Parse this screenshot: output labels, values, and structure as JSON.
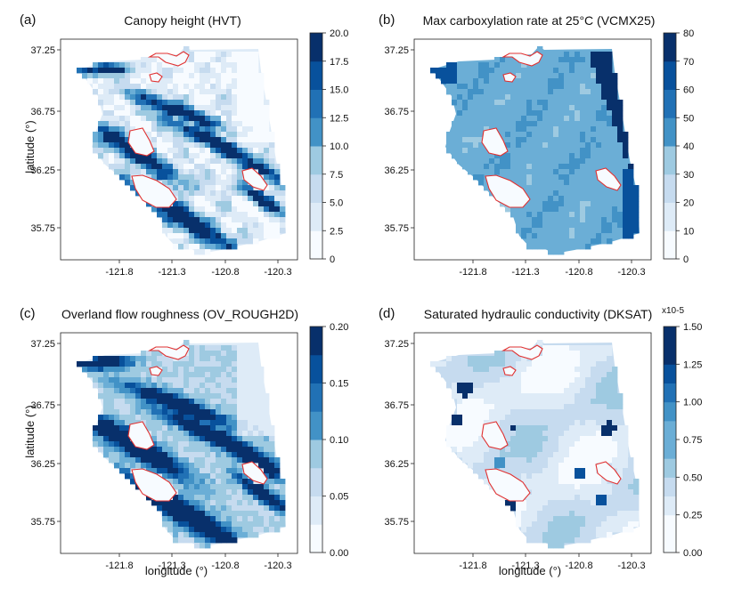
{
  "figure": {
    "shared_ylabel": "latitude (°)",
    "shared_xlabel": "longitude (°)",
    "lat_ticks": [
      "37.25",
      "36.75",
      "36.25",
      "35.75"
    ],
    "lon_ticks": [
      "-121.8",
      "-121.3",
      "-120.8",
      "-120.3"
    ],
    "panels": [
      {
        "letter": "(a)",
        "title": "Canopy height (HVT)",
        "colorbar": {
          "min": 0,
          "max": 20,
          "ticks": [
            "20.0",
            "17.5",
            "15.0",
            "12.5",
            "10.0",
            "7.5",
            "5.0",
            "2.5",
            "0"
          ],
          "multiplier": ""
        },
        "show_ylabel": true,
        "show_xlabel": false
      },
      {
        "letter": "(b)",
        "title": "Max carboxylation rate at 25°C (VCMX25)",
        "colorbar": {
          "min": 0,
          "max": 80,
          "ticks": [
            "80",
            "70",
            "60",
            "50",
            "40",
            "30",
            "20",
            "10",
            "0"
          ],
          "multiplier": ""
        },
        "show_ylabel": false,
        "show_xlabel": false
      },
      {
        "letter": "(c)",
        "title": "Overland flow roughness (OV_ROUGH2D)",
        "colorbar": {
          "min": 0,
          "max": 0.2,
          "ticks": [
            "0.20",
            "0.15",
            "0.10",
            "0.05",
            "0.00"
          ],
          "multiplier": ""
        },
        "show_ylabel": true,
        "show_xlabel": true
      },
      {
        "letter": "(d)",
        "title": "Saturated hydraulic conductivity (DKSAT)",
        "colorbar": {
          "min": 0,
          "max": 1.5,
          "ticks": [
            "1.50",
            "1.25",
            "1.00",
            "0.75",
            "0.50",
            "0.25",
            "0.00"
          ],
          "multiplier": "x10-5"
        },
        "show_ylabel": false,
        "show_xlabel": true
      }
    ],
    "colors": {
      "ramp": [
        "#f7fbff",
        "#deebf7",
        "#c6dbef",
        "#9ecae1",
        "#6baed6",
        "#4292c6",
        "#2171b5",
        "#08519c",
        "#08306b"
      ],
      "fire_outline": "#e03030",
      "axis": "#222222"
    }
  },
  "chart_data": {
    "type": "heatmap",
    "panels": [
      {
        "letter": "(a)",
        "variable": "HVT",
        "title": "Canopy height (HVT)",
        "range": [
          0,
          20
        ],
        "xlim": [
          -122.05,
          -120.2
        ],
        "ylim": [
          35.55,
          37.4
        ],
        "xticks": [
          -121.8,
          -121.3,
          -120.8,
          -120.3
        ],
        "yticks": [
          35.75,
          36.25,
          36.75,
          37.25
        ]
      },
      {
        "letter": "(b)",
        "variable": "VCMX25",
        "title": "Max carboxylation rate at 25°C (VCMX25)",
        "range": [
          0,
          80
        ],
        "xlim": [
          -122.05,
          -120.2
        ],
        "ylim": [
          35.55,
          37.4
        ],
        "xticks": [
          -121.8,
          -121.3,
          -120.8,
          -120.3
        ],
        "yticks": [
          35.75,
          36.25,
          36.75,
          37.25
        ]
      },
      {
        "letter": "(c)",
        "variable": "OV_ROUGH2D",
        "title": "Overland flow roughness (OV_ROUGH2D)",
        "range": [
          0,
          0.2
        ],
        "xlim": [
          -122.05,
          -120.2
        ],
        "ylim": [
          35.55,
          37.4
        ],
        "xticks": [
          -121.8,
          -121.3,
          -120.8,
          -120.3
        ],
        "yticks": [
          35.75,
          36.25,
          36.75,
          37.25
        ]
      },
      {
        "letter": "(d)",
        "variable": "DKSAT",
        "title": "Saturated hydraulic conductivity (DKSAT)",
        "range": [
          0,
          1.5
        ],
        "unit_multiplier": "x10-5",
        "xlim": [
          -122.05,
          -120.2
        ],
        "ylim": [
          35.55,
          37.4
        ],
        "xticks": [
          -121.8,
          -121.3,
          -120.8,
          -120.3
        ],
        "yticks": [
          35.75,
          36.25,
          36.75,
          37.25
        ]
      }
    ]
  }
}
